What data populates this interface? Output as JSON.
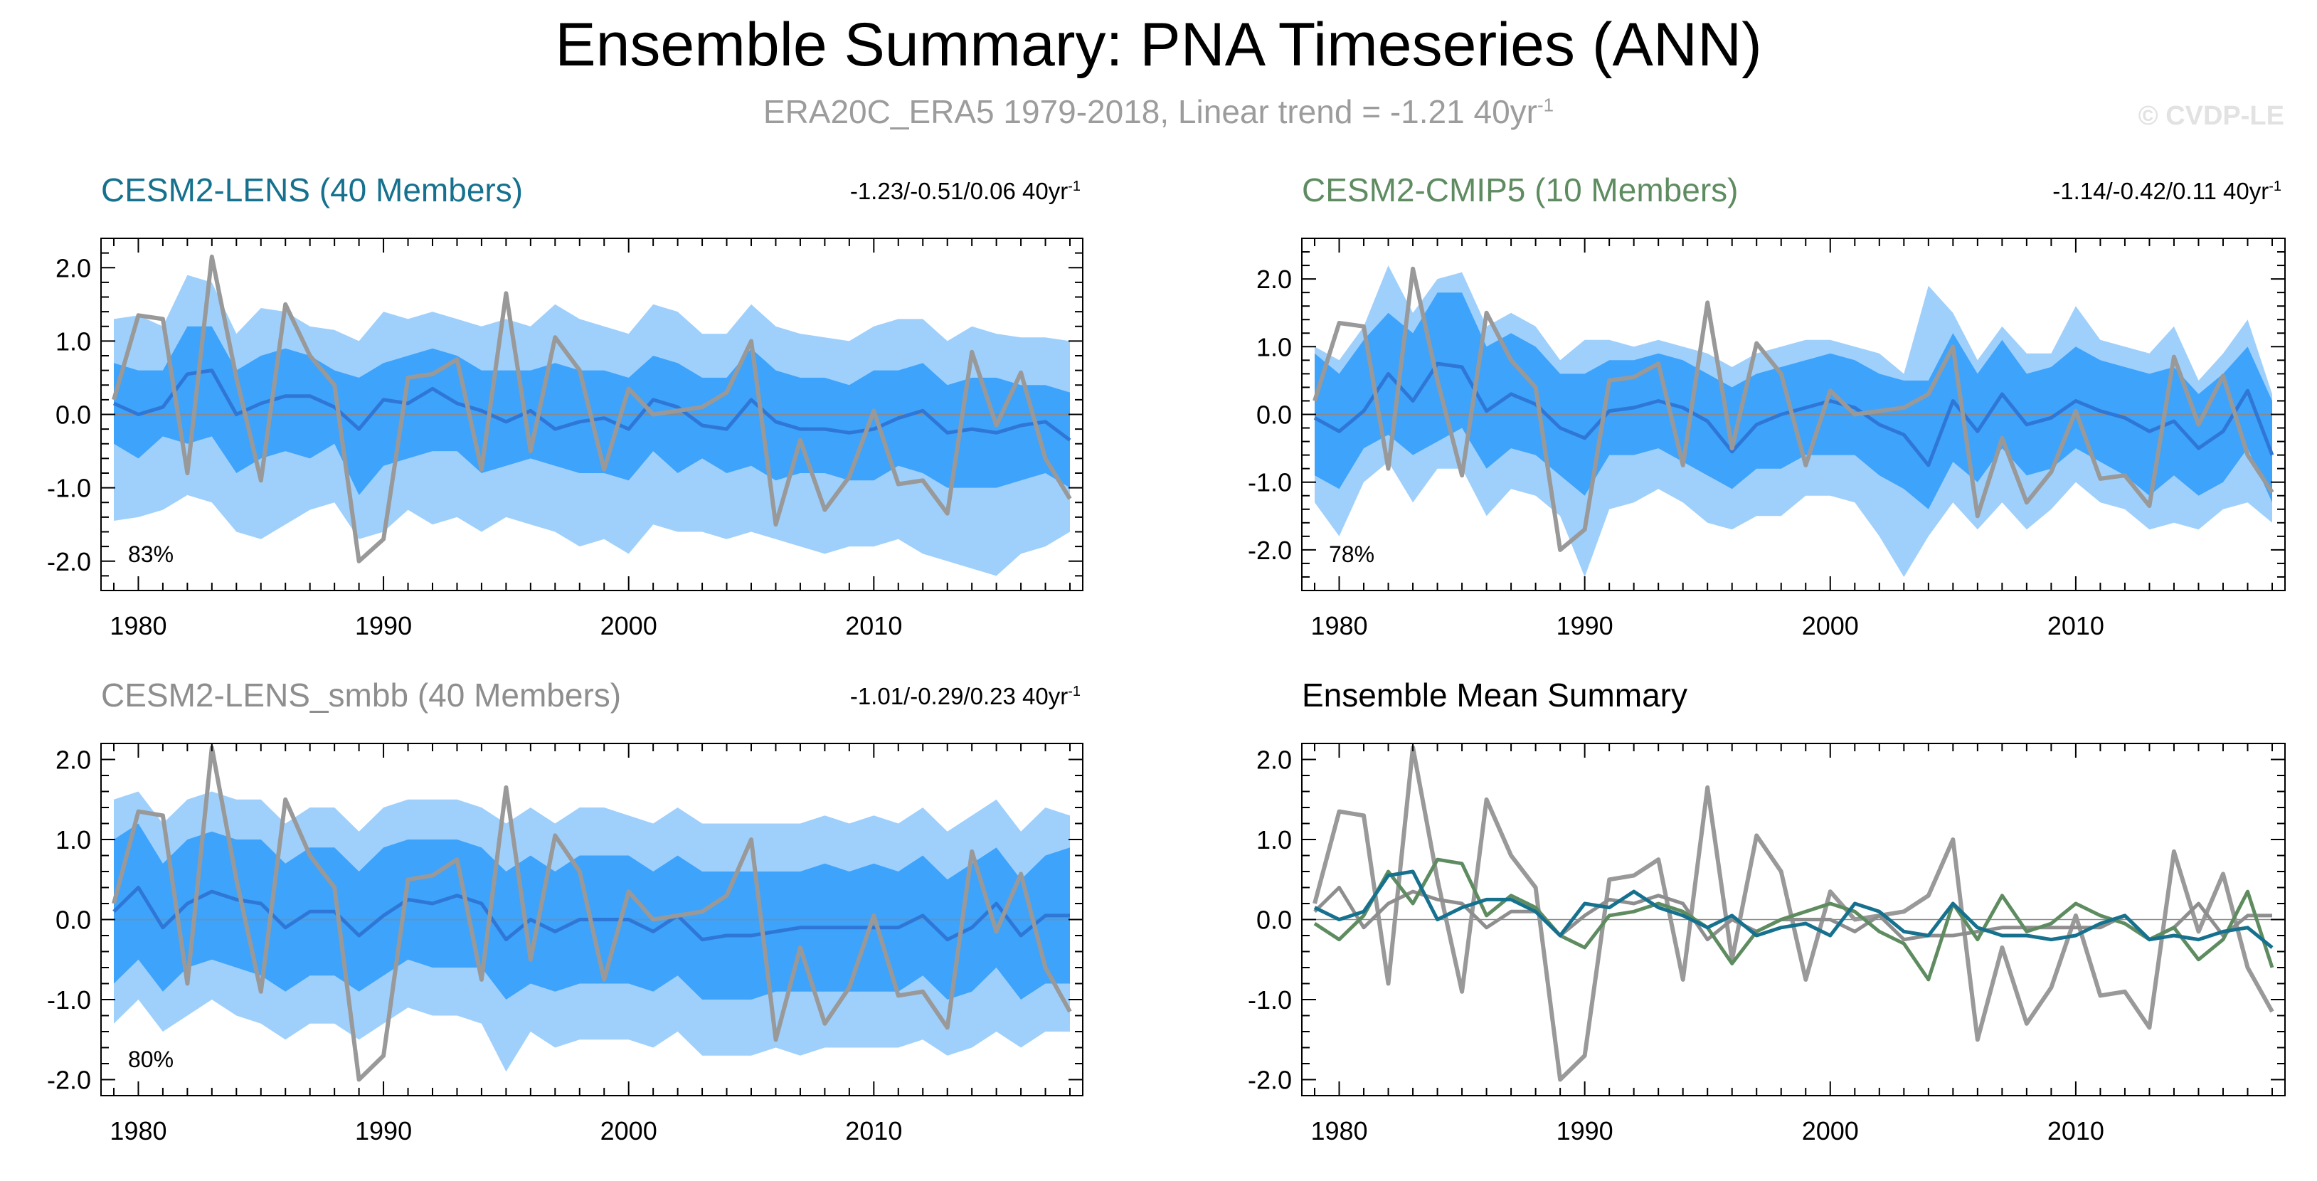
{
  "title": "Ensemble Summary: PNA Timeseries (ANN)",
  "subtitle": {
    "text": "ERA20C_ERA5 1979-2018, Linear trend = -1.21 40yr",
    "unit_exp": "-1"
  },
  "watermark": "© CVDP-LE",
  "colors": {
    "outer": "#9fd0fc",
    "inner": "#3ea3fb",
    "mean": "#2f77d6",
    "obs": "#999999",
    "lens": "#15718e",
    "cmip5": "#5e8c60",
    "smbb": "#8e8e8e"
  },
  "years": [
    1979,
    1980,
    1981,
    1982,
    1983,
    1984,
    1985,
    1986,
    1987,
    1988,
    1989,
    1990,
    1991,
    1992,
    1993,
    1994,
    1995,
    1996,
    1997,
    1998,
    1999,
    2000,
    2001,
    2002,
    2003,
    2004,
    2005,
    2006,
    2007,
    2008,
    2009,
    2010,
    2011,
    2012,
    2013,
    2014,
    2015,
    2016,
    2017,
    2018
  ],
  "obs": [
    0.2,
    1.35,
    1.3,
    -0.8,
    2.15,
    0.5,
    -0.9,
    1.5,
    0.8,
    0.4,
    -2.0,
    -1.7,
    0.5,
    0.55,
    0.75,
    -0.75,
    1.65,
    -0.5,
    1.05,
    0.6,
    -0.75,
    0.35,
    0.0,
    0.05,
    0.1,
    0.3,
    1.0,
    -1.5,
    -0.35,
    -1.3,
    -0.85,
    0.05,
    -0.95,
    -0.9,
    -1.35,
    0.85,
    -0.15,
    0.57,
    -0.6,
    -1.15
  ],
  "panels": [
    {
      "title": "CESM2-LENS (40 Members)",
      "trend": "-1.23/-0.51/0.06 40yr",
      "trend_exp": "-1",
      "percent": "83%",
      "title_color": "#15718e",
      "chart_data": {
        "type": "line",
        "title": "CESM2-LENS (40 Members)",
        "x": "years",
        "ylim": [
          -2.4,
          2.4
        ],
        "xlim": [
          1979,
          2018
        ],
        "yticks": [
          -2.0,
          -1.0,
          0.0,
          1.0,
          2.0
        ],
        "xticks": [
          1980,
          1990,
          2000,
          2010
        ],
        "series": [
          {
            "name": "ensemble mean",
            "values": [
              0.15,
              0.0,
              0.1,
              0.55,
              0.6,
              0.0,
              0.15,
              0.25,
              0.25,
              0.1,
              -0.2,
              0.2,
              0.15,
              0.35,
              0.15,
              0.05,
              -0.1,
              0.05,
              -0.2,
              -0.1,
              -0.05,
              -0.2,
              0.2,
              0.1,
              -0.15,
              -0.2,
              0.2,
              -0.1,
              -0.2,
              -0.2,
              -0.25,
              -0.2,
              -0.05,
              0.05,
              -0.25,
              -0.2,
              -0.25,
              -0.15,
              -0.1,
              -0.35
            ]
          },
          {
            "name": "band 10-90% low",
            "values": [
              -0.4,
              -0.6,
              -0.3,
              -0.4,
              -0.3,
              -0.8,
              -0.6,
              -0.5,
              -0.6,
              -0.4,
              -1.1,
              -0.7,
              -0.6,
              -0.5,
              -0.5,
              -0.8,
              -0.7,
              -0.6,
              -0.7,
              -0.8,
              -0.8,
              -0.9,
              -0.5,
              -0.8,
              -0.6,
              -0.8,
              -0.7,
              -0.9,
              -0.8,
              -0.8,
              -0.9,
              -0.9,
              -0.7,
              -0.8,
              -1.0,
              -1.0,
              -1.0,
              -0.9,
              -0.8,
              -1.0
            ]
          },
          {
            "name": "band 10-90% high",
            "values": [
              0.7,
              0.6,
              0.6,
              1.2,
              1.2,
              0.6,
              0.8,
              0.9,
              0.8,
              0.6,
              0.5,
              0.7,
              0.8,
              0.9,
              0.8,
              0.6,
              0.6,
              0.6,
              0.7,
              0.6,
              0.6,
              0.5,
              0.8,
              0.7,
              0.5,
              0.5,
              0.9,
              0.6,
              0.5,
              0.5,
              0.4,
              0.6,
              0.6,
              0.7,
              0.4,
              0.5,
              0.5,
              0.4,
              0.4,
              0.3
            ]
          },
          {
            "name": "band min-max low",
            "values": [
              -1.45,
              -1.4,
              -1.3,
              -1.1,
              -1.2,
              -1.6,
              -1.7,
              -1.5,
              -1.3,
              -1.2,
              -1.7,
              -1.6,
              -1.3,
              -1.5,
              -1.4,
              -1.6,
              -1.4,
              -1.5,
              -1.6,
              -1.8,
              -1.7,
              -1.9,
              -1.5,
              -1.6,
              -1.6,
              -1.7,
              -1.6,
              -1.7,
              -1.8,
              -1.9,
              -1.8,
              -1.8,
              -1.7,
              -1.9,
              -2.0,
              -2.1,
              -2.2,
              -1.9,
              -1.8,
              -1.6
            ]
          },
          {
            "name": "band min-max high",
            "values": [
              1.3,
              1.35,
              1.2,
              1.9,
              1.8,
              1.1,
              1.45,
              1.4,
              1.2,
              1.15,
              1.0,
              1.4,
              1.3,
              1.4,
              1.3,
              1.2,
              1.3,
              1.2,
              1.5,
              1.3,
              1.2,
              1.1,
              1.5,
              1.4,
              1.1,
              1.1,
              1.5,
              1.2,
              1.1,
              1.05,
              1.0,
              1.2,
              1.3,
              1.3,
              1.0,
              1.2,
              1.1,
              1.05,
              1.05,
              1.0
            ]
          },
          {
            "name": "observations",
            "values": "obs"
          }
        ]
      }
    },
    {
      "title": "CESM2-CMIP5 (10 Members)",
      "trend": "-1.14/-0.42/0.11 40yr",
      "trend_exp": "-1",
      "percent": "78%",
      "title_color": "#5e8c60",
      "chart_data": {
        "type": "line",
        "title": "CESM2-CMIP5 (10 Members)",
        "x": "years",
        "ylim": [
          -2.6,
          2.6
        ],
        "xlim": [
          1979,
          2018
        ],
        "yticks": [
          -2.0,
          -1.0,
          0.0,
          1.0,
          2.0
        ],
        "xticks": [
          1980,
          1990,
          2000,
          2010
        ],
        "series": [
          {
            "name": "ensemble mean",
            "values": [
              -0.05,
              -0.25,
              0.05,
              0.6,
              0.2,
              0.75,
              0.7,
              0.05,
              0.3,
              0.15,
              -0.2,
              -0.35,
              0.05,
              0.1,
              0.2,
              0.1,
              -0.1,
              -0.55,
              -0.15,
              0.0,
              0.1,
              0.2,
              0.1,
              -0.15,
              -0.3,
              -0.75,
              0.2,
              -0.25,
              0.3,
              -0.15,
              -0.05,
              0.2,
              0.05,
              -0.05,
              -0.25,
              -0.1,
              -0.5,
              -0.25,
              0.35,
              -0.6
            ]
          },
          {
            "name": "band 10-90% low",
            "values": [
              -0.9,
              -1.1,
              -0.5,
              -0.3,
              -0.6,
              -0.4,
              -0.2,
              -0.8,
              -0.5,
              -0.6,
              -0.9,
              -1.2,
              -0.6,
              -0.6,
              -0.5,
              -0.7,
              -0.9,
              -1.1,
              -0.8,
              -0.8,
              -0.6,
              -0.6,
              -0.6,
              -0.9,
              -1.1,
              -1.4,
              -0.7,
              -1.0,
              -0.5,
              -0.9,
              -0.8,
              -0.5,
              -0.7,
              -0.9,
              -1.2,
              -0.9,
              -1.2,
              -1.0,
              -0.5,
              -1.3
            ]
          },
          {
            "name": "band 10-90% high",
            "values": [
              0.9,
              0.6,
              1.1,
              1.5,
              1.2,
              1.8,
              1.8,
              1.0,
              1.2,
              1.0,
              0.6,
              0.6,
              0.8,
              0.8,
              0.9,
              0.8,
              0.6,
              0.4,
              0.6,
              0.7,
              0.8,
              0.9,
              0.8,
              0.6,
              0.5,
              0.5,
              1.2,
              0.6,
              1.1,
              0.6,
              0.7,
              1.0,
              0.8,
              0.7,
              0.6,
              0.7,
              0.3,
              0.6,
              1.0,
              0.2
            ]
          },
          {
            "name": "band min-max low",
            "values": [
              -1.3,
              -1.8,
              -1.0,
              -0.7,
              -1.3,
              -0.8,
              -0.8,
              -1.5,
              -1.1,
              -1.2,
              -1.5,
              -2.4,
              -1.4,
              -1.3,
              -1.1,
              -1.3,
              -1.6,
              -1.7,
              -1.5,
              -1.5,
              -1.2,
              -1.2,
              -1.3,
              -1.8,
              -2.4,
              -1.8,
              -1.3,
              -1.7,
              -1.3,
              -1.7,
              -1.4,
              -1.0,
              -1.3,
              -1.4,
              -1.7,
              -1.6,
              -1.7,
              -1.4,
              -1.3,
              -1.6
            ]
          },
          {
            "name": "band min-max high",
            "values": [
              1.0,
              0.8,
              1.3,
              2.2,
              1.5,
              2.0,
              2.1,
              1.3,
              1.5,
              1.3,
              0.8,
              1.1,
              1.1,
              1.0,
              1.1,
              1.0,
              0.9,
              0.7,
              0.9,
              1.0,
              1.1,
              1.1,
              1.0,
              0.9,
              0.6,
              1.9,
              1.5,
              0.8,
              1.3,
              0.9,
              0.9,
              1.6,
              1.1,
              1.0,
              0.9,
              1.3,
              0.5,
              0.9,
              1.4,
              0.3
            ]
          },
          {
            "name": "observations",
            "values": "obs"
          }
        ]
      }
    },
    {
      "title": "CESM2-LENS_smbb (40 Members)",
      "trend": "-1.01/-0.29/0.23 40yr",
      "trend_exp": "-1",
      "percent": "80%",
      "title_color": "#8e8e8e",
      "chart_data": {
        "type": "line",
        "title": "CESM2-LENS_smbb (40 Members)",
        "x": "years",
        "ylim": [
          -2.2,
          2.2
        ],
        "xlim": [
          1979,
          2018
        ],
        "yticks": [
          -2.0,
          -1.0,
          0.0,
          1.0,
          2.0
        ],
        "xticks": [
          1980,
          1990,
          2000,
          2010
        ],
        "series": [
          {
            "name": "ensemble mean",
            "values": [
              0.1,
              0.4,
              -0.1,
              0.2,
              0.35,
              0.25,
              0.2,
              -0.1,
              0.1,
              0.1,
              -0.2,
              0.05,
              0.25,
              0.2,
              0.3,
              0.2,
              -0.25,
              0.0,
              -0.15,
              0.0,
              0.0,
              0.0,
              -0.15,
              0.05,
              -0.25,
              -0.2,
              -0.2,
              -0.15,
              -0.1,
              -0.1,
              -0.1,
              -0.1,
              -0.1,
              0.05,
              -0.25,
              -0.1,
              0.2,
              -0.2,
              0.05,
              0.05
            ]
          },
          {
            "name": "band 10-90% low",
            "values": [
              -0.8,
              -0.5,
              -0.9,
              -0.6,
              -0.5,
              -0.6,
              -0.7,
              -0.9,
              -0.7,
              -0.7,
              -0.9,
              -0.7,
              -0.5,
              -0.6,
              -0.6,
              -0.6,
              -1.0,
              -0.8,
              -0.9,
              -0.8,
              -0.8,
              -0.8,
              -0.9,
              -0.7,
              -1.0,
              -1.0,
              -1.0,
              -0.9,
              -0.9,
              -0.9,
              -0.9,
              -0.9,
              -0.9,
              -0.7,
              -1.0,
              -0.9,
              -0.6,
              -1.0,
              -0.8,
              -0.8
            ]
          },
          {
            "name": "band 10-90% high",
            "values": [
              1.0,
              1.2,
              0.7,
              1.0,
              1.1,
              1.0,
              1.0,
              0.7,
              0.9,
              0.9,
              0.6,
              0.9,
              1.0,
              1.0,
              1.0,
              0.9,
              0.6,
              0.8,
              0.6,
              0.8,
              0.8,
              0.8,
              0.6,
              0.8,
              0.6,
              0.6,
              0.6,
              0.6,
              0.6,
              0.7,
              0.6,
              0.7,
              0.6,
              0.8,
              0.5,
              0.7,
              0.9,
              0.5,
              0.8,
              0.9
            ]
          },
          {
            "name": "band min-max low",
            "values": [
              -1.3,
              -1.0,
              -1.4,
              -1.2,
              -1.0,
              -1.2,
              -1.3,
              -1.5,
              -1.3,
              -1.3,
              -1.5,
              -1.3,
              -1.1,
              -1.2,
              -1.2,
              -1.3,
              -1.9,
              -1.4,
              -1.6,
              -1.5,
              -1.5,
              -1.5,
              -1.6,
              -1.4,
              -1.7,
              -1.7,
              -1.7,
              -1.6,
              -1.7,
              -1.6,
              -1.6,
              -1.6,
              -1.6,
              -1.5,
              -1.7,
              -1.6,
              -1.4,
              -1.6,
              -1.4,
              -1.4
            ]
          },
          {
            "name": "band min-max high",
            "values": [
              1.5,
              1.6,
              1.2,
              1.5,
              1.6,
              1.5,
              1.5,
              1.2,
              1.4,
              1.4,
              1.1,
              1.4,
              1.5,
              1.5,
              1.5,
              1.4,
              1.2,
              1.4,
              1.2,
              1.4,
              1.4,
              1.3,
              1.2,
              1.4,
              1.2,
              1.2,
              1.2,
              1.2,
              1.2,
              1.3,
              1.2,
              1.3,
              1.2,
              1.4,
              1.1,
              1.3,
              1.5,
              1.1,
              1.4,
              1.3
            ]
          },
          {
            "name": "observations",
            "values": "obs"
          }
        ]
      }
    },
    {
      "title": "Ensemble Mean Summary",
      "trend": "",
      "trend_exp": "",
      "percent": "",
      "title_color": "#000000",
      "chart_data": {
        "type": "line",
        "title": "Ensemble Mean Summary",
        "x": "years",
        "ylim": [
          -2.2,
          2.2
        ],
        "xlim": [
          1979,
          2018
        ],
        "yticks": [
          -2.0,
          -1.0,
          0.0,
          1.0,
          2.0
        ],
        "xticks": [
          1980,
          1990,
          2000,
          2010
        ],
        "series": [
          {
            "name": "observations",
            "values": "obs"
          },
          {
            "name": "CESM2-LENS_smbb",
            "ref": 2
          },
          {
            "name": "CESM2-CMIP5",
            "ref": 1
          },
          {
            "name": "CESM2-LENS",
            "ref": 0
          }
        ]
      }
    }
  ]
}
